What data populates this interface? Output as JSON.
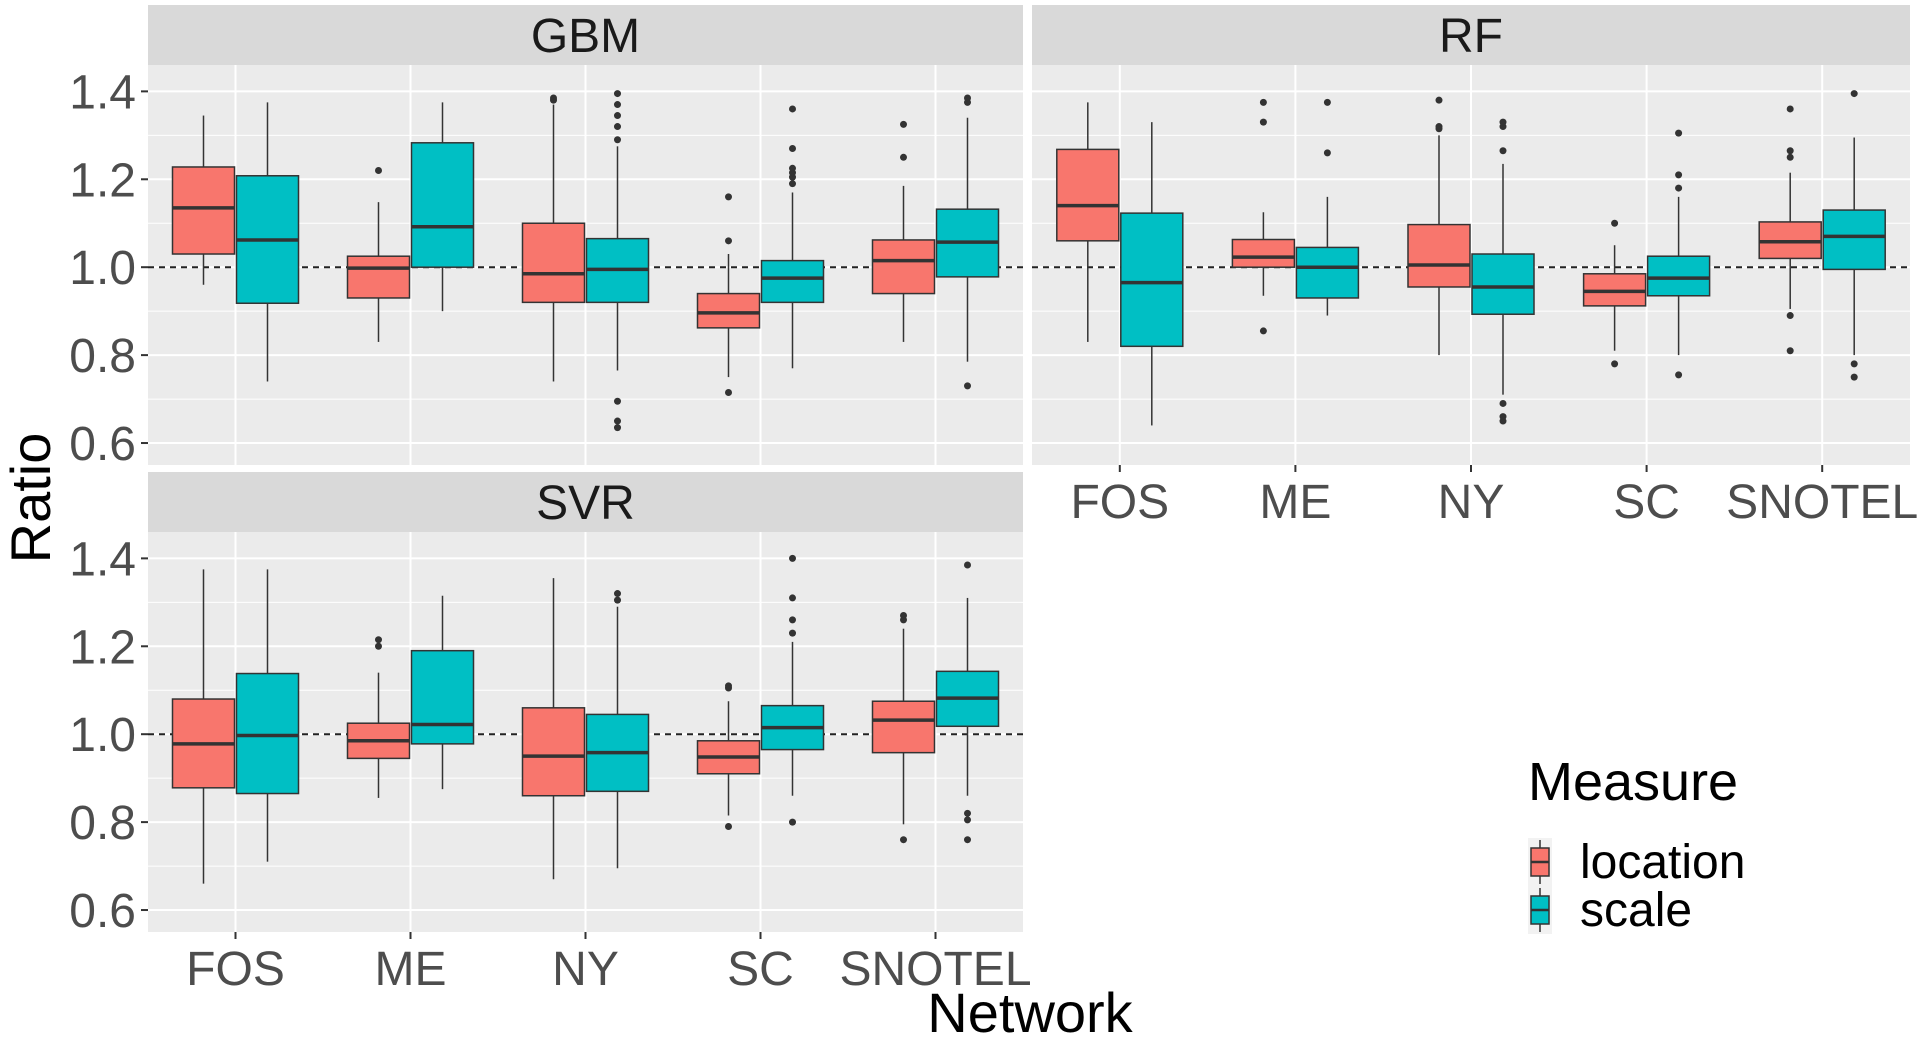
{
  "chart_data": {
    "type": "boxplot",
    "xlabel": "Network",
    "ylabel": "Ratio",
    "ylim": [
      0.55,
      1.46
    ],
    "yticks": [
      "0.6",
      "0.8",
      "1.0",
      "1.2",
      "1.4"
    ],
    "categories": [
      "FOS",
      "ME",
      "NY",
      "SC",
      "SNOTEL"
    ],
    "reference_line": 1.0,
    "grid": true,
    "legend": {
      "title": "Measure",
      "placement": "bottom-right",
      "entries": [
        {
          "name": "location",
          "color": "#F8766D"
        },
        {
          "name": "scale",
          "color": "#00BFC4"
        }
      ]
    },
    "facets": [
      {
        "title": "GBM",
        "series": [
          {
            "name": "location",
            "boxes": [
              {
                "category": "FOS",
                "lower": 0.96,
                "q1": 1.03,
                "median": 1.135,
                "q3": 1.228,
                "upper": 1.345,
                "outliers": []
              },
              {
                "category": "ME",
                "lower": 0.83,
                "q1": 0.93,
                "median": 0.998,
                "q3": 1.025,
                "upper": 1.148,
                "outliers": [
                  1.22
                ]
              },
              {
                "category": "NY",
                "lower": 0.74,
                "q1": 0.92,
                "median": 0.985,
                "q3": 1.1,
                "upper": 1.37,
                "outliers": [
                  1.38,
                  1.385
                ]
              },
              {
                "category": "SC",
                "lower": 0.75,
                "q1": 0.862,
                "median": 0.896,
                "q3": 0.94,
                "upper": 1.03,
                "outliers": [
                  1.06,
                  1.16,
                  0.715
                ]
              },
              {
                "category": "SNOTEL",
                "lower": 0.83,
                "q1": 0.94,
                "median": 1.015,
                "q3": 1.062,
                "upper": 1.185,
                "outliers": [
                  1.25,
                  1.325
                ]
              }
            ]
          },
          {
            "name": "scale",
            "boxes": [
              {
                "category": "FOS",
                "lower": 0.74,
                "q1": 0.918,
                "median": 1.062,
                "q3": 1.208,
                "upper": 1.375,
                "outliers": []
              },
              {
                "category": "ME",
                "lower": 0.9,
                "q1": 1.0,
                "median": 1.092,
                "q3": 1.283,
                "upper": 1.375,
                "outliers": []
              },
              {
                "category": "NY",
                "lower": 0.765,
                "q1": 0.92,
                "median": 0.995,
                "q3": 1.065,
                "upper": 1.275,
                "outliers": [
                  1.29,
                  1.32,
                  1.345,
                  1.37,
                  1.395,
                  0.695,
                  0.65,
                  0.635
                ]
              },
              {
                "category": "SC",
                "lower": 0.77,
                "q1": 0.92,
                "median": 0.975,
                "q3": 1.015,
                "upper": 1.17,
                "outliers": [
                  1.19,
                  1.205,
                  1.215,
                  1.225,
                  1.27,
                  1.36
                ]
              },
              {
                "category": "SNOTEL",
                "lower": 0.785,
                "q1": 0.978,
                "median": 1.057,
                "q3": 1.132,
                "upper": 1.34,
                "outliers": [
                  1.375,
                  1.385,
                  0.73
                ]
              }
            ]
          }
        ]
      },
      {
        "title": "RF",
        "series": [
          {
            "name": "location",
            "boxes": [
              {
                "category": "FOS",
                "lower": 0.83,
                "q1": 1.06,
                "median": 1.14,
                "q3": 1.268,
                "upper": 1.375,
                "outliers": []
              },
              {
                "category": "ME",
                "lower": 0.935,
                "q1": 1.0,
                "median": 1.023,
                "q3": 1.063,
                "upper": 1.125,
                "outliers": [
                  1.33,
                  1.375,
                  0.855
                ]
              },
              {
                "category": "NY",
                "lower": 0.8,
                "q1": 0.955,
                "median": 1.005,
                "q3": 1.097,
                "upper": 1.3,
                "outliers": [
                  1.315,
                  1.32,
                  1.38
                ]
              },
              {
                "category": "SC",
                "lower": 0.81,
                "q1": 0.912,
                "median": 0.945,
                "q3": 0.985,
                "upper": 1.05,
                "outliers": [
                  1.1,
                  0.78
                ]
              },
              {
                "category": "SNOTEL",
                "lower": 0.905,
                "q1": 1.02,
                "median": 1.058,
                "q3": 1.103,
                "upper": 1.215,
                "outliers": [
                  1.25,
                  1.265,
                  1.36,
                  0.89,
                  0.81
                ]
              }
            ]
          },
          {
            "name": "scale",
            "boxes": [
              {
                "category": "FOS",
                "lower": 0.64,
                "q1": 0.82,
                "median": 0.965,
                "q3": 1.123,
                "upper": 1.33,
                "outliers": []
              },
              {
                "category": "ME",
                "lower": 0.89,
                "q1": 0.93,
                "median": 1.0,
                "q3": 1.045,
                "upper": 1.16,
                "outliers": [
                  1.26,
                  1.375
                ]
              },
              {
                "category": "NY",
                "lower": 0.71,
                "q1": 0.893,
                "median": 0.955,
                "q3": 1.03,
                "upper": 1.235,
                "outliers": [
                  1.265,
                  1.32,
                  1.33,
                  0.69,
                  0.66,
                  0.65
                ]
              },
              {
                "category": "SC",
                "lower": 0.8,
                "q1": 0.935,
                "median": 0.975,
                "q3": 1.025,
                "upper": 1.16,
                "outliers": [
                  1.18,
                  1.21,
                  1.305,
                  0.755
                ]
              },
              {
                "category": "SNOTEL",
                "lower": 0.8,
                "q1": 0.995,
                "median": 1.07,
                "q3": 1.13,
                "upper": 1.295,
                "outliers": [
                  1.395,
                  0.78,
                  0.75
                ]
              }
            ]
          }
        ]
      },
      {
        "title": "SVR",
        "series": [
          {
            "name": "location",
            "boxes": [
              {
                "category": "FOS",
                "lower": 0.66,
                "q1": 0.878,
                "median": 0.978,
                "q3": 1.08,
                "upper": 1.375,
                "outliers": []
              },
              {
                "category": "ME",
                "lower": 0.855,
                "q1": 0.945,
                "median": 0.985,
                "q3": 1.025,
                "upper": 1.14,
                "outliers": [
                  1.2,
                  1.215
                ]
              },
              {
                "category": "NY",
                "lower": 0.67,
                "q1": 0.86,
                "median": 0.95,
                "q3": 1.06,
                "upper": 1.355,
                "outliers": []
              },
              {
                "category": "SC",
                "lower": 0.815,
                "q1": 0.91,
                "median": 0.948,
                "q3": 0.985,
                "upper": 1.075,
                "outliers": [
                  1.105,
                  1.11,
                  0.79
                ]
              },
              {
                "category": "SNOTEL",
                "lower": 0.795,
                "q1": 0.958,
                "median": 1.032,
                "q3": 1.075,
                "upper": 1.24,
                "outliers": [
                  1.26,
                  1.27,
                  0.76
                ]
              }
            ]
          },
          {
            "name": "scale",
            "boxes": [
              {
                "category": "FOS",
                "lower": 0.71,
                "q1": 0.865,
                "median": 0.997,
                "q3": 1.138,
                "upper": 1.375,
                "outliers": []
              },
              {
                "category": "ME",
                "lower": 0.875,
                "q1": 0.978,
                "median": 1.022,
                "q3": 1.19,
                "upper": 1.315,
                "outliers": []
              },
              {
                "category": "NY",
                "lower": 0.695,
                "q1": 0.87,
                "median": 0.958,
                "q3": 1.045,
                "upper": 1.29,
                "outliers": [
                  1.305,
                  1.32
                ]
              },
              {
                "category": "SC",
                "lower": 0.86,
                "q1": 0.965,
                "median": 1.015,
                "q3": 1.065,
                "upper": 1.21,
                "outliers": [
                  1.23,
                  1.26,
                  1.31,
                  1.4,
                  0.8
                ]
              },
              {
                "category": "SNOTEL",
                "lower": 0.86,
                "q1": 1.018,
                "median": 1.082,
                "q3": 1.143,
                "upper": 1.31,
                "outliers": [
                  1.385,
                  0.82,
                  0.805,
                  0.76
                ]
              }
            ]
          }
        ]
      }
    ]
  }
}
